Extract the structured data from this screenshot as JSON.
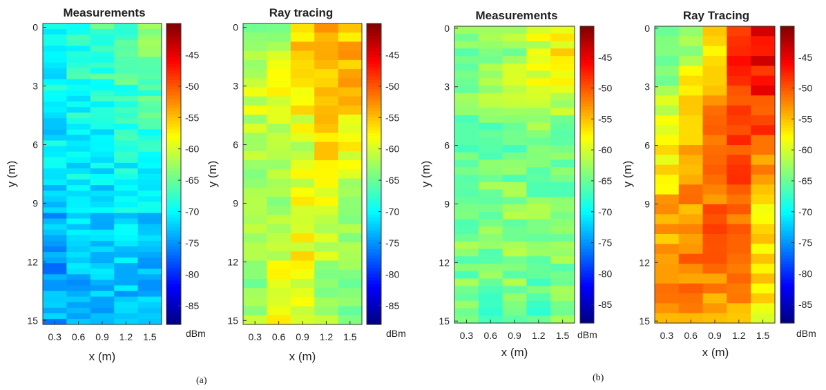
{
  "figure": {
    "captions": [
      "(a)",
      "(b)"
    ]
  },
  "colorbar": {
    "unit": "dBm",
    "range": [
      -88,
      -40
    ],
    "ticks": [
      -45,
      -50,
      -55,
      -60,
      -65,
      -70,
      -75,
      -80,
      -85
    ],
    "colormap": "jet"
  },
  "chart_data": [
    {
      "type": "heatmap",
      "panel": "a",
      "title": "Measurements",
      "xlabel": "x (m)",
      "ylabel": "y (m)",
      "xticks": [
        0.3,
        0.6,
        0.9,
        1.2,
        1.5
      ],
      "yticks": [
        0,
        3,
        6,
        9,
        12,
        15
      ],
      "xlim": [
        0.15,
        1.65
      ],
      "ylim": [
        15.2,
        -0.2
      ],
      "x": [
        0.3,
        0.6,
        0.9,
        1.2,
        1.5
      ],
      "profile": {
        "y": [
          0,
          3,
          6,
          9,
          12,
          15
        ],
        "values": [
          [
            -70,
            -68,
            -66,
            -67,
            -64
          ],
          [
            -70,
            -69,
            -68,
            -67,
            -66
          ],
          [
            -71,
            -70,
            -70,
            -69,
            -68
          ],
          [
            -73,
            -72,
            -72,
            -71,
            -71
          ],
          [
            -75,
            -73,
            -73,
            -72,
            -74
          ],
          [
            -74,
            -73,
            -74,
            -74,
            -71
          ]
        ]
      },
      "unit": "dBm"
    },
    {
      "type": "heatmap",
      "panel": "a",
      "title": "Ray tracing",
      "xlabel": "x (m)",
      "ylabel": "y (m)",
      "xticks": [
        0.3,
        0.6,
        0.9,
        1.2,
        1.5
      ],
      "yticks": [
        0,
        3,
        6,
        9,
        12,
        15
      ],
      "xlim": [
        0.15,
        1.65
      ],
      "ylim": [
        15.2,
        -0.2
      ],
      "x": [
        0.3,
        0.6,
        0.9,
        1.2,
        1.5
      ],
      "profile": {
        "y": [
          0,
          3,
          6,
          9,
          12,
          15
        ],
        "values": [
          [
            -66,
            -62,
            -55,
            -55,
            -55
          ],
          [
            -60,
            -58,
            -57,
            -56,
            -55
          ],
          [
            -62,
            -61,
            -60,
            -56,
            -59
          ],
          [
            -63,
            -62,
            -59,
            -60,
            -63
          ],
          [
            -63,
            -60,
            -58,
            -62,
            -64
          ],
          [
            -63,
            -58,
            -60,
            -63,
            -64
          ]
        ]
      },
      "unit": "dBm"
    },
    {
      "type": "heatmap",
      "panel": "b",
      "title": "Measurements",
      "xlabel": "x (m)",
      "ylabel": "y (m)",
      "xticks": [
        0.3,
        0.6,
        0.9,
        1.2,
        1.5
      ],
      "yticks": [
        0,
        3,
        6,
        9,
        12,
        15
      ],
      "xlim": [
        0.15,
        1.65
      ],
      "ylim": [
        15.1,
        -0.1
      ],
      "x": [
        0.3,
        0.6,
        0.9,
        1.2,
        1.5
      ],
      "profile": {
        "y": [
          0,
          3,
          6,
          9,
          12,
          15
        ],
        "values": [
          [
            -64,
            -64,
            -63,
            -60,
            -57
          ],
          [
            -64,
            -63,
            -62,
            -60,
            -59
          ],
          [
            -65,
            -65,
            -65,
            -64,
            -65
          ],
          [
            -65,
            -64,
            -64,
            -64,
            -64
          ],
          [
            -64,
            -64,
            -63,
            -64,
            -64
          ],
          [
            -65,
            -66,
            -65,
            -67,
            -64
          ]
        ]
      },
      "unit": "dBm"
    },
    {
      "type": "heatmap",
      "panel": "b",
      "title": "Ray Tracing",
      "xlabel": "x (m)",
      "ylabel": "y (m)",
      "xticks": [
        0.3,
        0.6,
        0.9,
        1.2,
        1.5
      ],
      "yticks": [
        0,
        3,
        6,
        9,
        12,
        15
      ],
      "xlim": [
        0.15,
        1.65
      ],
      "ylim": [
        15.1,
        -0.1
      ],
      "x": [
        0.3,
        0.6,
        0.9,
        1.2,
        1.5
      ],
      "profile": {
        "y": [
          0,
          3,
          6,
          9,
          12,
          15
        ],
        "values": [
          [
            -67,
            -64,
            -58,
            -47,
            -45
          ],
          [
            -62,
            -58,
            -55,
            -48,
            -47
          ],
          [
            -58,
            -55,
            -51,
            -50,
            -51
          ],
          [
            -55,
            -53,
            -51,
            -51,
            -56
          ],
          [
            -53,
            -52,
            -51,
            -52,
            -57
          ],
          [
            -54,
            -53,
            -53,
            -54,
            -58
          ]
        ]
      },
      "unit": "dBm"
    }
  ]
}
